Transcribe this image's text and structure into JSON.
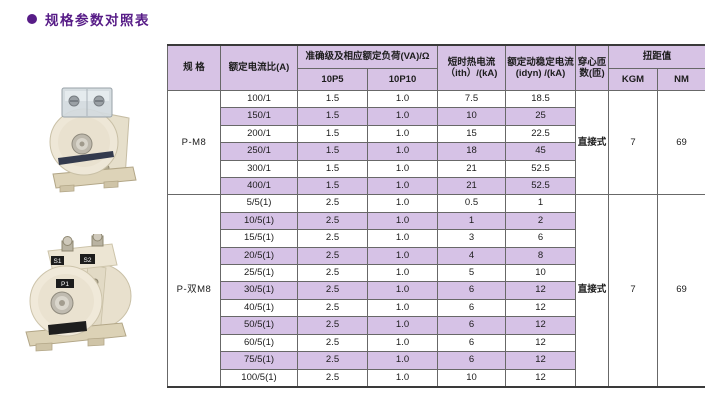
{
  "page": {
    "title": "规格参数对照表"
  },
  "colors": {
    "title": "#571c87",
    "header_bg": "#d7c3e5",
    "stripe_bg": "#d6c2e6",
    "table_border": "#3a3a3a"
  },
  "products": [
    {
      "name": "P-M8"
    },
    {
      "name": "P-双M8",
      "terminal_labels": [
        "S1",
        "S2"
      ],
      "front_label": "P1"
    }
  ],
  "table": {
    "headers": {
      "spec": "规 格",
      "ratio": "额定电流比(A)",
      "accuracy_group": "准确级及相应额定负荷(VA)/Ω",
      "p5": "10P5",
      "p10": "10P10",
      "thermal": "短时热电流（ith）/(kA)",
      "dynamic": "额定动稳定电流 (idyn) /(kA)",
      "turns": "穿心匝数(匝)",
      "torque_group": "扭距值",
      "kgm": "KGM",
      "nm": "NM"
    },
    "sections": [
      {
        "model": "P-M8",
        "rows": [
          [
            "100/1",
            "1.5",
            "1.0",
            "7.5",
            "18.5"
          ],
          [
            "150/1",
            "1.5",
            "1.0",
            "10",
            "25"
          ],
          [
            "200/1",
            "1.5",
            "1.0",
            "15",
            "22.5"
          ],
          [
            "250/1",
            "1.5",
            "1.0",
            "18",
            "45"
          ],
          [
            "300/1",
            "1.5",
            "1.0",
            "21",
            "52.5"
          ],
          [
            "400/1",
            "1.5",
            "1.0",
            "21",
            "52.5"
          ]
        ],
        "merged": [
          "直接式",
          "7",
          "69"
        ]
      },
      {
        "model": "P-双M8",
        "rows": [
          [
            "5/5(1)",
            "2.5",
            "1.0",
            "0.5",
            "1"
          ],
          [
            "10/5(1)",
            "2.5",
            "1.0",
            "1",
            "2"
          ],
          [
            "15/5(1)",
            "2.5",
            "1.0",
            "3",
            "6"
          ],
          [
            "20/5(1)",
            "2.5",
            "1.0",
            "4",
            "8"
          ],
          [
            "25/5(1)",
            "2.5",
            "1.0",
            "5",
            "10"
          ],
          [
            "30/5(1)",
            "2.5",
            "1.0",
            "6",
            "12"
          ],
          [
            "40/5(1)",
            "2.5",
            "1.0",
            "6",
            "12"
          ],
          [
            "50/5(1)",
            "2.5",
            "1.0",
            "6",
            "12"
          ],
          [
            "60/5(1)",
            "2.5",
            "1.0",
            "6",
            "12"
          ],
          [
            "75/5(1)",
            "2.5",
            "1.0",
            "6",
            "12"
          ],
          [
            "100/5(1)",
            "2.5",
            "1.0",
            "10",
            "12"
          ]
        ],
        "merged": [
          "直接式",
          "7",
          "69"
        ]
      }
    ]
  }
}
